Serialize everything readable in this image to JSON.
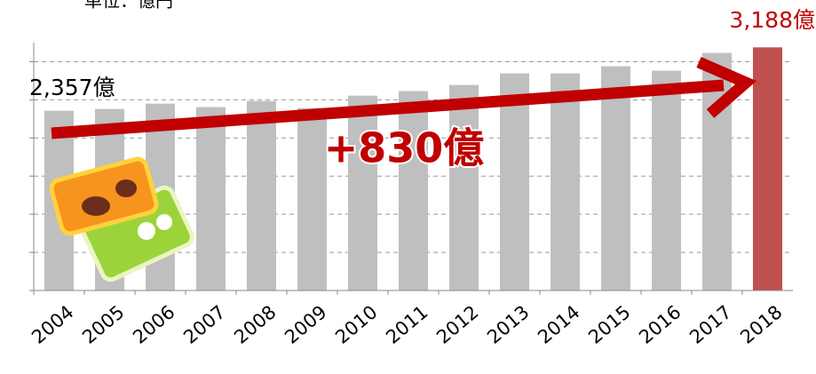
{
  "chart_data": {
    "type": "bar",
    "unit_label": "単位：億円",
    "categories": [
      "2004",
      "2005",
      "2006",
      "2007",
      "2008",
      "2009",
      "2010",
      "2011",
      "2012",
      "2013",
      "2014",
      "2015",
      "2016",
      "2017",
      "2018"
    ],
    "values": [
      2357,
      2380,
      2450,
      2404,
      2485,
      2392,
      2555,
      2614,
      2695,
      2847,
      2847,
      2940,
      2882,
      3115,
      3188
    ],
    "colors": [
      "#bfbfbf",
      "#bfbfbf",
      "#bfbfbf",
      "#bfbfbf",
      "#bfbfbf",
      "#bfbfbf",
      "#bfbfbf",
      "#bfbfbf",
      "#bfbfbf",
      "#bfbfbf",
      "#bfbfbf",
      "#bfbfbf",
      "#bfbfbf",
      "#bfbfbf",
      "#c0504d"
    ],
    "ylim": [
      0,
      3250
    ],
    "yticks": [
      0,
      500,
      1000,
      1500,
      2000,
      2500,
      3000
    ],
    "grid": true,
    "annotations": [
      {
        "text": "2,357億",
        "color": "#000000"
      },
      {
        "text": "3,188億",
        "color": "#c00000"
      },
      {
        "text": "+830億",
        "color": "#c00000"
      }
    ]
  }
}
